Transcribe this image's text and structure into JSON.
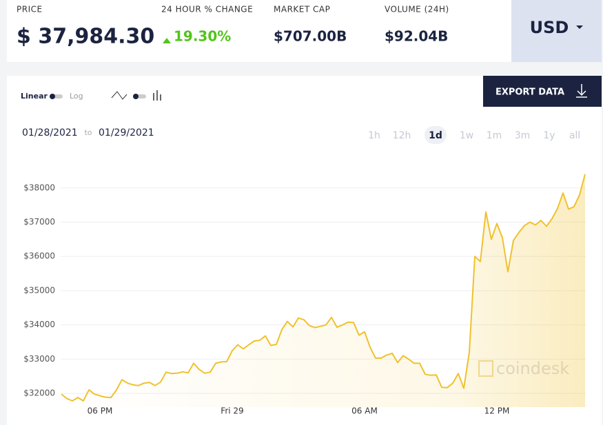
{
  "header": {
    "stats": [
      {
        "label": "PRICE",
        "value": "$ 37,984.30"
      },
      {
        "label": "24 HOUR % CHANGE",
        "value": "19.30%"
      },
      {
        "label": "MARKET CAP",
        "value": "$707.00B"
      },
      {
        "label": "VOLUME (24H)",
        "value": "$92.04B"
      }
    ],
    "currency": "USD"
  },
  "controls": {
    "scale": [
      "Linear",
      "Log"
    ],
    "export": "EXPORT DATA",
    "date_from": "01/28/2021",
    "date_sep": "to",
    "date_to": "01/29/2021",
    "ranges": [
      "1h",
      "12h",
      "1d",
      "1w",
      "1m",
      "3m",
      "1y",
      "all"
    ],
    "active_range": "1d"
  },
  "chart_data": {
    "type": "line",
    "watermark": "coindesk",
    "categories": [
      null,
      null,
      null,
      null,
      null,
      null,
      null,
      "06 PM",
      null,
      null,
      null,
      null,
      null,
      null,
      null,
      null,
      null,
      null,
      null,
      null,
      null,
      null,
      null,
      null,
      null,
      null,
      null,
      null,
      null,
      null,
      null,
      "Fri 29",
      null,
      null,
      null,
      null,
      null,
      null,
      null,
      null,
      null,
      null,
      null,
      null,
      null,
      null,
      null,
      null,
      null,
      null,
      null,
      null,
      null,
      null,
      null,
      "06 AM",
      null,
      null,
      null,
      null,
      null,
      null,
      null,
      null,
      null,
      null,
      null,
      null,
      null,
      null,
      null,
      null,
      null,
      null,
      null,
      null,
      null,
      null,
      null,
      "12 PM",
      null,
      null,
      null,
      null,
      null,
      null,
      null,
      null,
      null,
      null,
      null,
      null,
      null,
      null,
      null,
      null
    ],
    "values": [
      31980,
      31850,
      31780,
      31880,
      31780,
      32100,
      31980,
      31930,
      31890,
      31880,
      32100,
      32400,
      32300,
      32250,
      32230,
      32300,
      32320,
      32230,
      32330,
      32620,
      32580,
      32590,
      32630,
      32600,
      32880,
      32700,
      32590,
      32620,
      32880,
      32920,
      32930,
      33250,
      33420,
      33300,
      33420,
      33530,
      33550,
      33680,
      33400,
      33430,
      33860,
      34100,
      33940,
      34200,
      34150,
      33980,
      33920,
      33960,
      34000,
      34220,
      33930,
      34000,
      34080,
      34070,
      33700,
      33800,
      33350,
      33030,
      33030,
      33120,
      33170,
      32900,
      33100,
      33000,
      32880,
      32880,
      32560,
      32530,
      32540,
      32180,
      32170,
      32300,
      32580,
      32150,
      33200,
      36000,
      35850,
      37300,
      36500,
      36960,
      36550,
      35550,
      36470,
      36700,
      36900,
      37000,
      36920,
      37050,
      36880,
      37100,
      37400,
      37850,
      37380,
      37450,
      37800,
      38400
    ],
    "color": "#f0c12c",
    "ylim": [
      31600,
      38800
    ],
    "yticks": [
      {
        "value": 32000,
        "label": "$32000"
      },
      {
        "value": 33000,
        "label": "$33000"
      },
      {
        "value": 34000,
        "label": "$34000"
      },
      {
        "value": 35000,
        "label": "$35000"
      },
      {
        "value": 36000,
        "label": "$36000"
      },
      {
        "value": 37000,
        "label": "$37000"
      },
      {
        "value": 38000,
        "label": "$38000"
      }
    ],
    "grid": true
  }
}
